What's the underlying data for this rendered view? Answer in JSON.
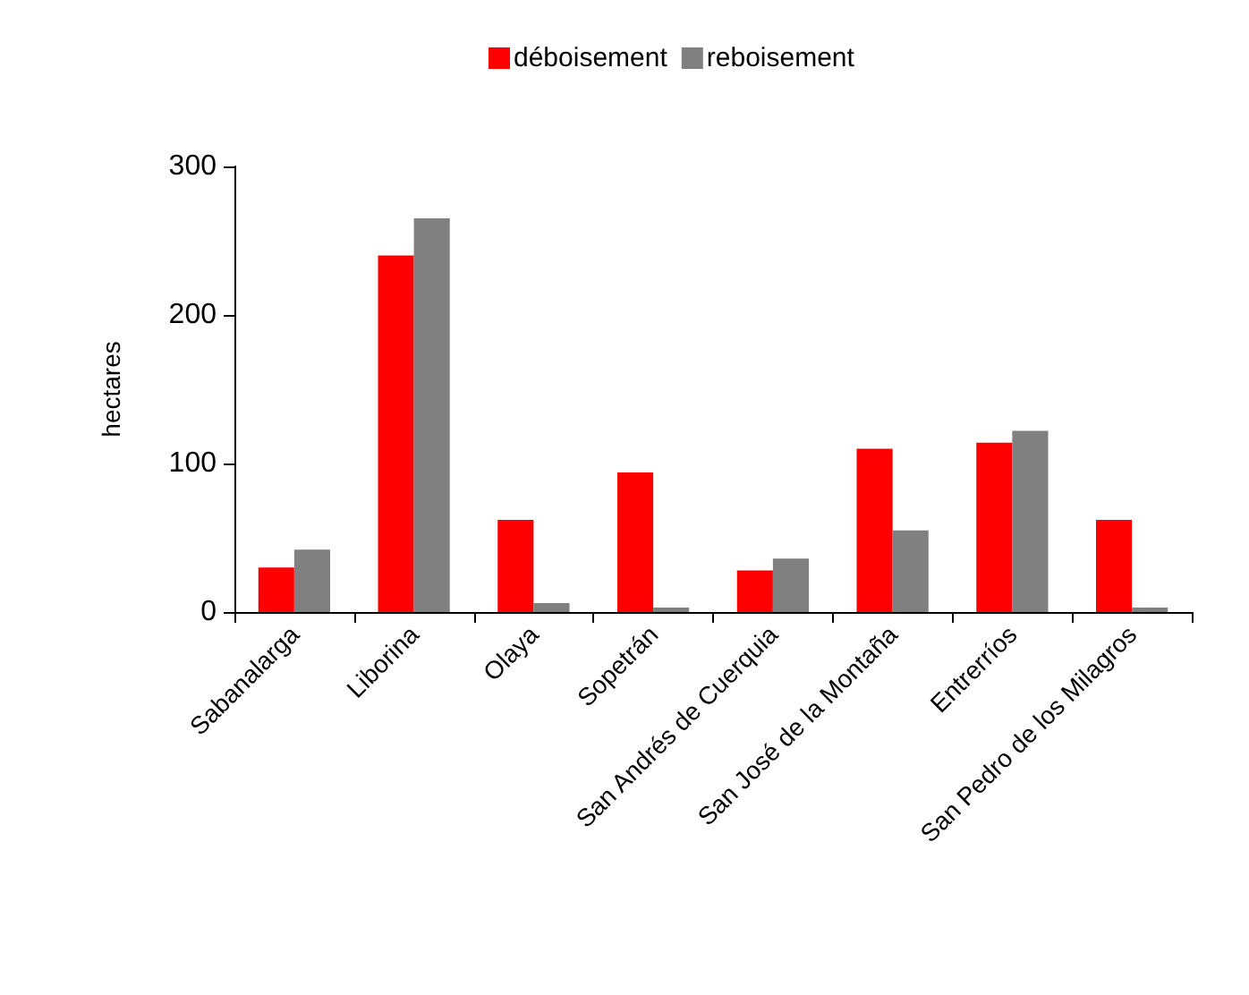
{
  "chart_data": {
    "type": "bar",
    "ylabel": "hectares",
    "categories": [
      "Sabanalarga",
      "Liborina",
      "Olaya",
      "Sopetrán",
      "San Andrés de Cuerquia",
      "San José de la Montaña",
      "Entrerríos",
      "San Pedro de los Milagros"
    ],
    "series": [
      {
        "name": "déboisement",
        "color": "#ff0000",
        "values": [
          30,
          240,
          62,
          94,
          28,
          110,
          114,
          62
        ]
      },
      {
        "name": "reboisement",
        "color": "#808080",
        "values": [
          42,
          265,
          6,
          3,
          36,
          55,
          122,
          3
        ]
      }
    ],
    "ylim": [
      0,
      300
    ],
    "yticks": [
      0,
      100,
      200,
      300
    ],
    "grid": false,
    "legend": "top"
  }
}
